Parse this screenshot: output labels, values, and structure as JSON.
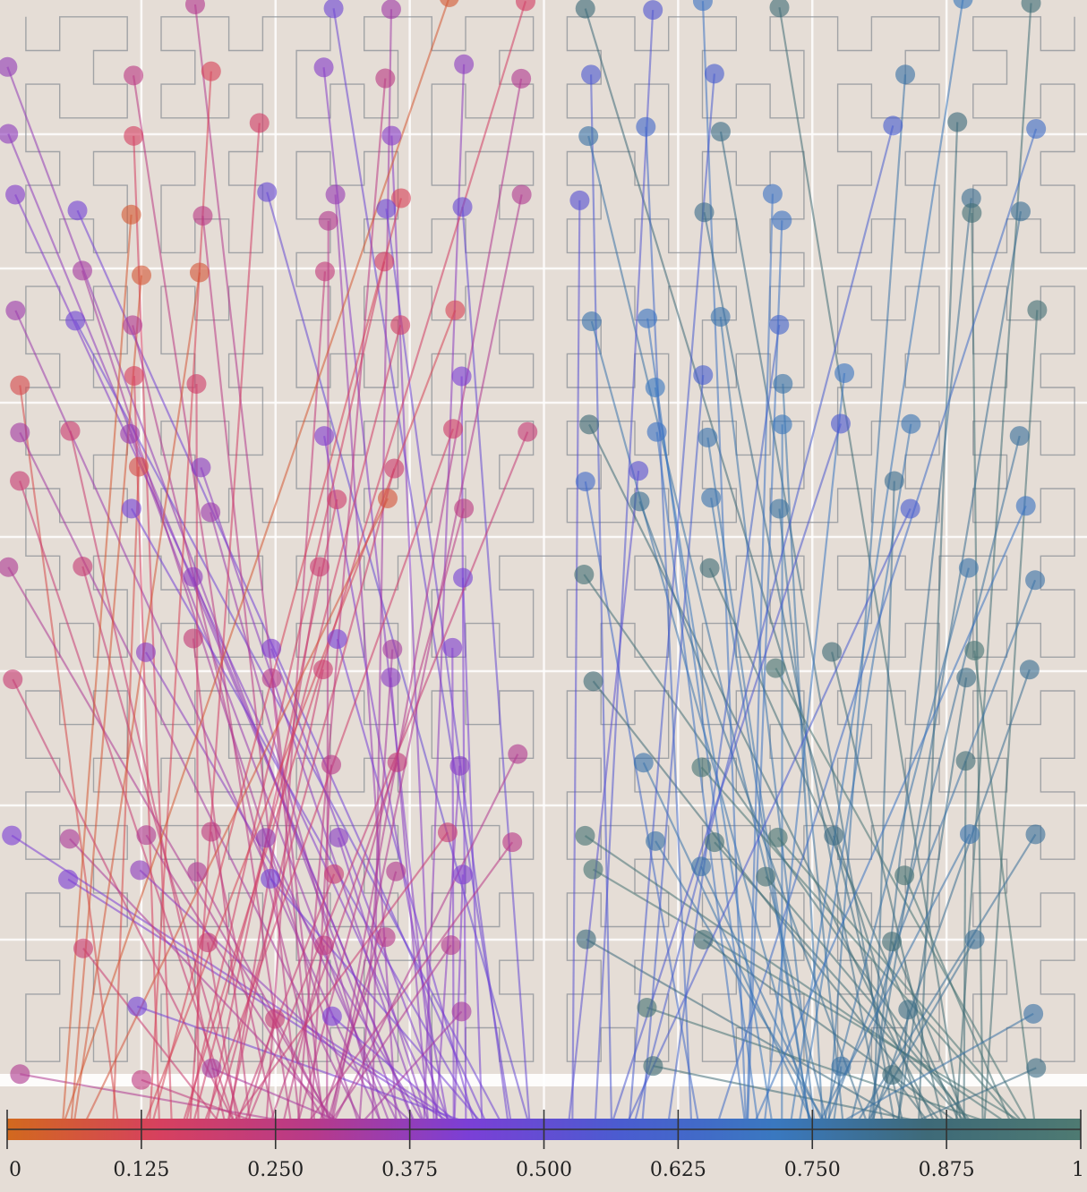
{
  "chart_data": {
    "type": "scatter",
    "title": "",
    "xlabel": "",
    "ylabel": "",
    "xlim": [
      0,
      1
    ],
    "colorscale": [
      "#d2691e",
      "#d6405f",
      "#b73a8a",
      "#7b3fd6",
      "#4a5cd0",
      "#3a78c0",
      "#3e6a78",
      "#4e7a72"
    ],
    "grid": true,
    "hilbert_curve_overlay": true,
    "x_ticks": [
      {
        "value": 0,
        "label": "0"
      },
      {
        "value": 0.125,
        "label": "0.125"
      },
      {
        "value": 0.25,
        "label": "0.250"
      },
      {
        "value": 0.375,
        "label": "0.375"
      },
      {
        "value": 0.5,
        "label": "0.500"
      },
      {
        "value": 0.625,
        "label": "0.625"
      },
      {
        "value": 0.75,
        "label": "0.750"
      },
      {
        "value": 0.875,
        "label": "0.875"
      },
      {
        "value": 1,
        "label": "1"
      }
    ]
  }
}
